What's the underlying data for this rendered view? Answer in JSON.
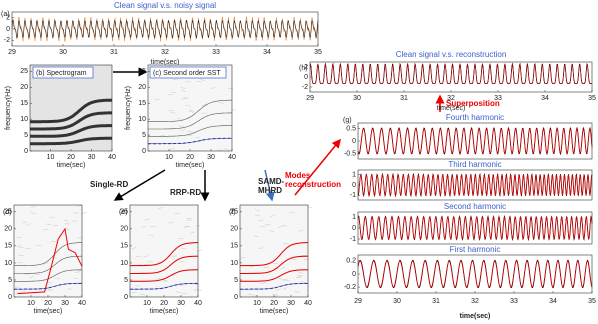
{
  "panels": {
    "a": {
      "label": "(a)",
      "title": "Clean signal v.s. noisy signal",
      "xticks": [
        29,
        30,
        31,
        32,
        33,
        34,
        35
      ],
      "yticks": [
        2,
        0,
        -2
      ],
      "xlabel": "time(sec)"
    },
    "b": {
      "label": "(b) Spectrogram",
      "ylabel": "frequency(Hz)",
      "yticks": [
        0,
        5,
        10,
        15,
        20,
        25
      ],
      "xticks": [
        10,
        20,
        30,
        40
      ],
      "xlabel": "time(sec)"
    },
    "c": {
      "label": "(c) Second order SST",
      "ylabel": "frequency(Hz)",
      "yticks": [
        0,
        5,
        10,
        15,
        20,
        25
      ],
      "xticks": [
        10,
        20,
        30,
        40
      ],
      "xlabel": "time(sec)"
    },
    "d": {
      "label": "(d)",
      "yticks": [
        0,
        5,
        10,
        15,
        20,
        25
      ],
      "xticks": [
        10,
        20,
        30,
        40
      ],
      "xlabel": "time(sec)"
    },
    "e": {
      "label": "(e)",
      "yticks": [
        0,
        5,
        10,
        15,
        20,
        25
      ],
      "xticks": [
        10,
        20,
        30,
        40
      ],
      "xlabel": "time(sec)"
    },
    "f": {
      "label": "(f)",
      "yticks": [
        0,
        5,
        10,
        15,
        20,
        25
      ],
      "xticks": [
        10,
        20,
        30,
        40
      ],
      "xlabel": "time(sec)"
    },
    "h": {
      "label": "(h)",
      "title": "Clean signal v.s. reconstruction",
      "xticks": [
        29,
        30,
        31,
        32,
        33,
        34,
        35
      ],
      "yticks": [
        2,
        0,
        -2
      ],
      "xlabel": "time(sec)"
    },
    "g": {
      "label": "(g)",
      "xticks": [
        29,
        30,
        31,
        32,
        33,
        34,
        35
      ],
      "xlabel": "time(sec)",
      "subplots": [
        {
          "title": "Fourth harmonic",
          "yticks": [
            0.5,
            0,
            -0.5
          ]
        },
        {
          "title": "Third harmonic",
          "yticks": [
            1,
            0,
            -1
          ]
        },
        {
          "title": "Second harmonic",
          "yticks": [
            1,
            0,
            -1
          ]
        },
        {
          "title": "First harmonic",
          "yticks": [
            0.2,
            0,
            -0.2
          ]
        }
      ]
    }
  },
  "annotations": {
    "single_rd": "Single-RD",
    "rrp_rd": "RRP-RD",
    "samd_mhrd": [
      "SAMD-",
      "MHRD"
    ],
    "modes": [
      "Modes",
      "reconstruction"
    ],
    "superposition": "Superposition"
  }
}
